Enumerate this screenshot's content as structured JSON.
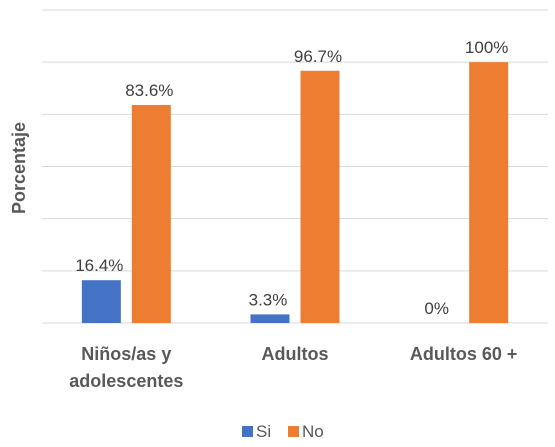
{
  "chart_data": {
    "type": "bar",
    "categories": [
      [
        "Niños/as y",
        "adolescentes"
      ],
      [
        "Adultos"
      ],
      [
        "Adultos 60 +"
      ]
    ],
    "series": [
      {
        "name": "Si",
        "values": [
          16.4,
          3.3,
          0
        ],
        "labels": [
          "16.4%",
          "3.3%",
          "0%"
        ],
        "color": "#4472C4"
      },
      {
        "name": "No",
        "values": [
          83.6,
          96.7,
          100
        ],
        "labels": [
          "83.6%",
          "96.7%",
          "100%"
        ],
        "color": "#ED7D31"
      }
    ],
    "ylabel": "Porcentaje",
    "ylim": [
      0,
      120
    ],
    "grid": true,
    "legend": "bottom",
    "gridline_color": "#d9d9d9"
  }
}
